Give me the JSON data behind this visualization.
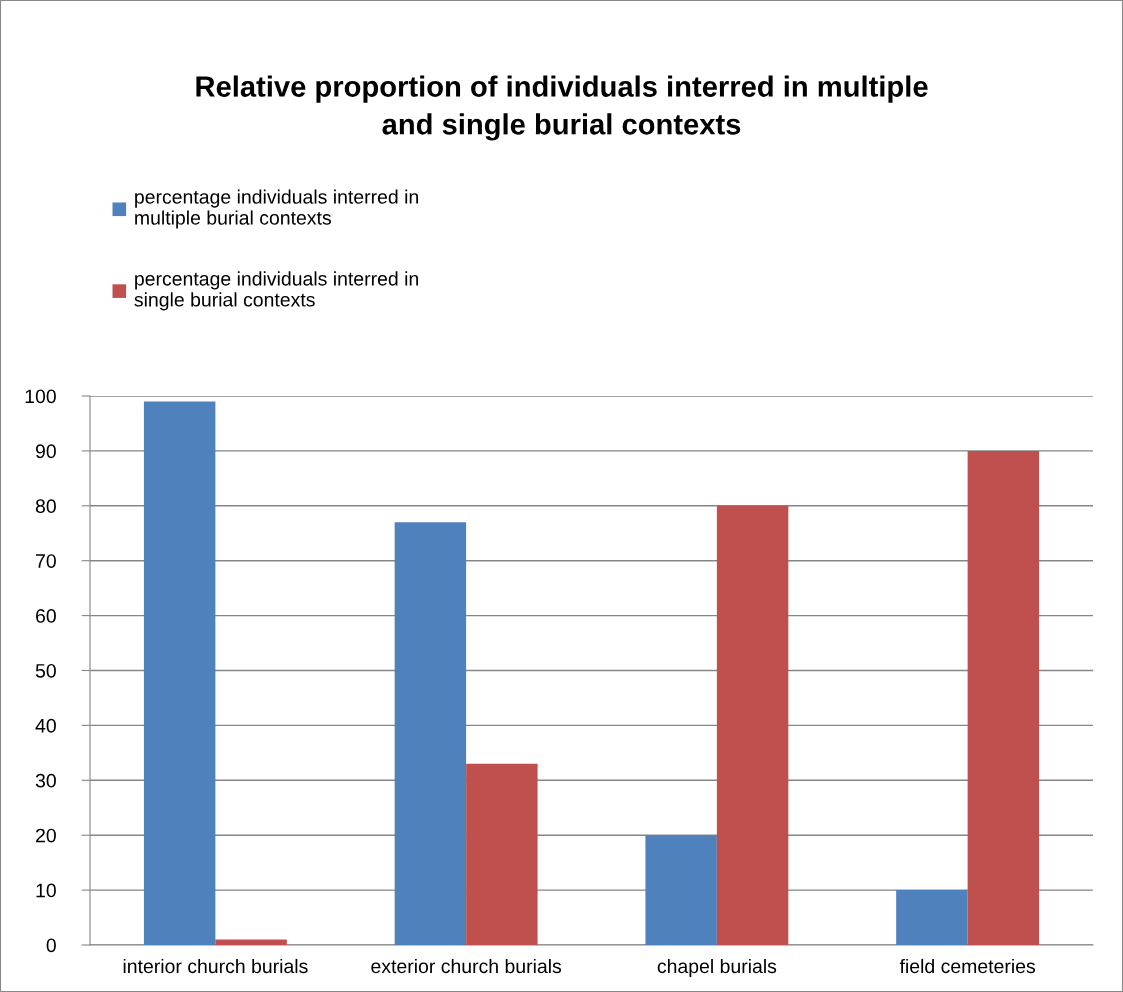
{
  "chart_data": {
    "type": "bar",
    "title": "Relative proportion of individuals interred in multiple\nand single burial contexts",
    "categories": [
      "interior church burials",
      "exterior church burials",
      "chapel burials",
      "field cemeteries"
    ],
    "series": [
      {
        "name": "percentage individuals interred in\nmultiple burial contexts",
        "color": "#4f81bd",
        "values": [
          99,
          77,
          20,
          10
        ]
      },
      {
        "name": "percentage individuals interred in\nsingle burial contexts",
        "color": "#c0504d",
        "values": [
          1,
          33,
          80,
          90
        ]
      }
    ],
    "ylim": [
      0,
      100
    ],
    "yticks": [
      0,
      10,
      20,
      30,
      40,
      50,
      60,
      70,
      80,
      90,
      100
    ],
    "grid": "y",
    "legend": "top left"
  }
}
